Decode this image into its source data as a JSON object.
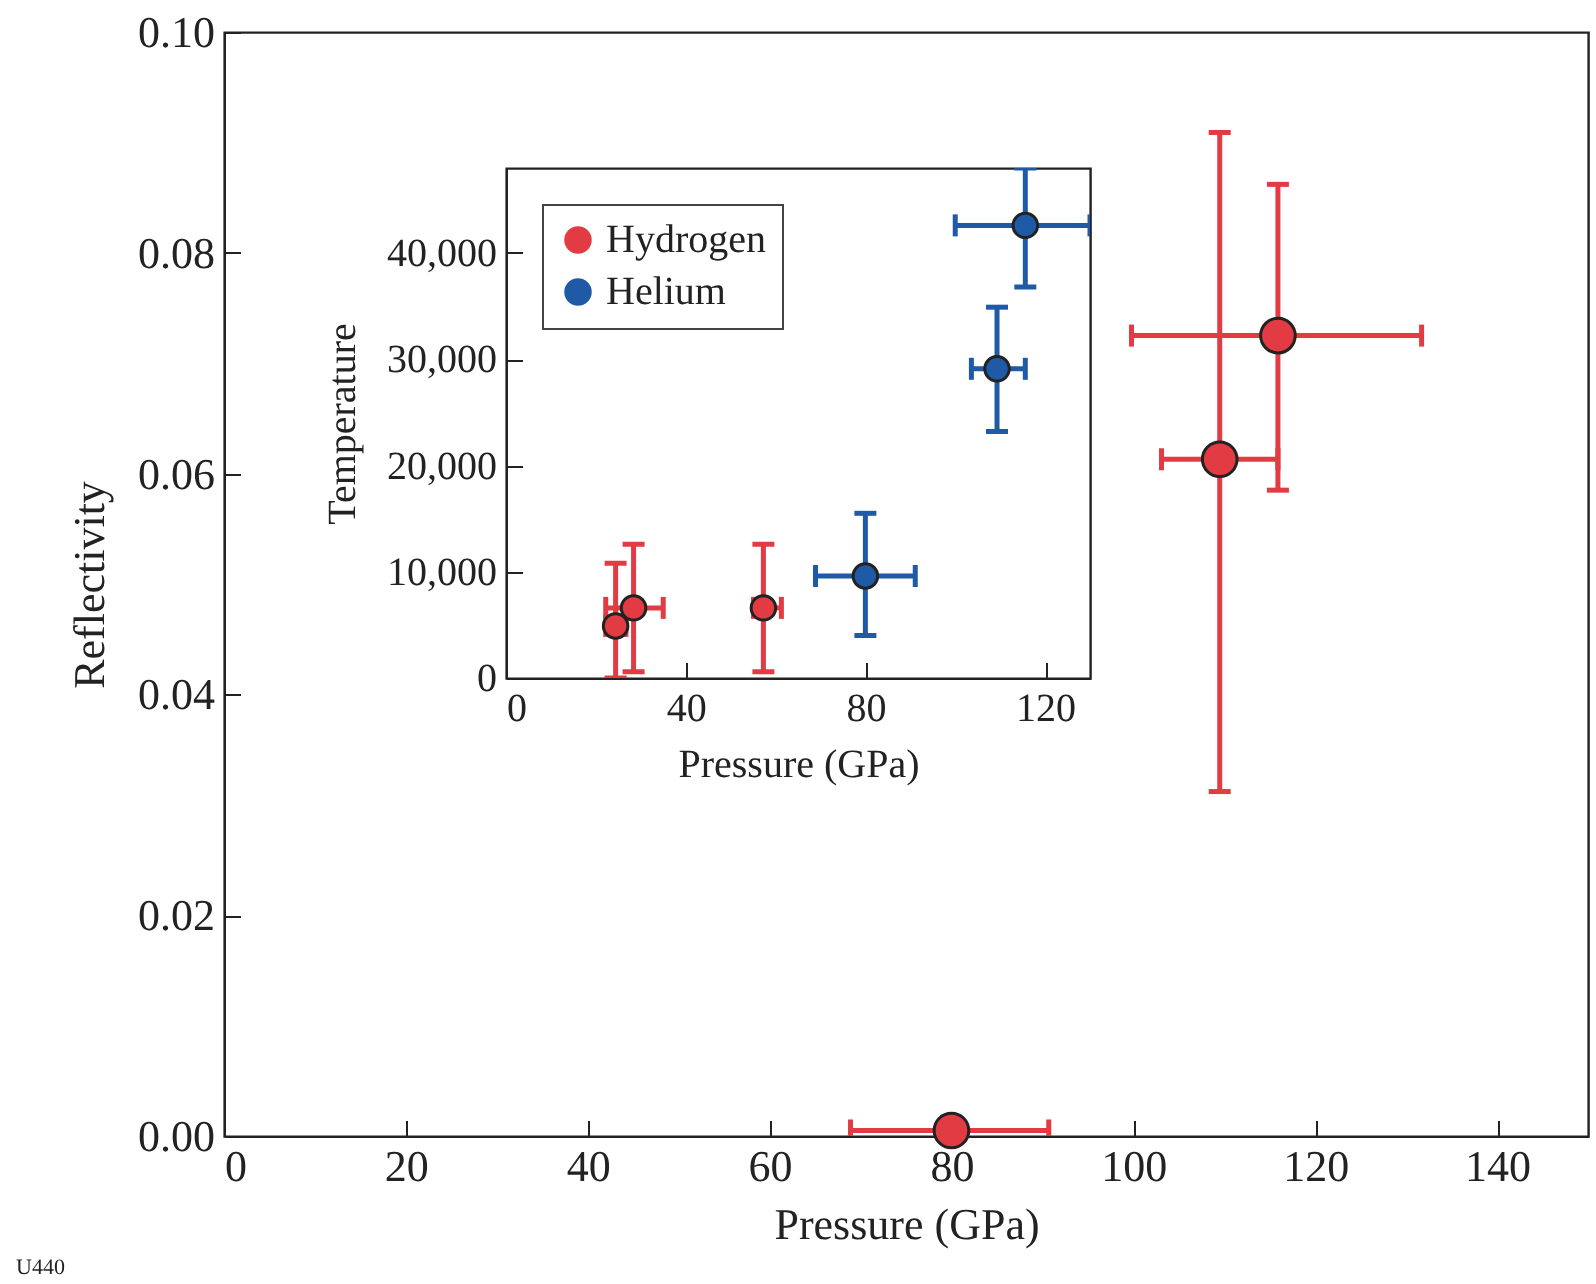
{
  "chart_data": [
    {
      "type": "scatter",
      "xlabel": "Pressure (GPa)",
      "ylabel": "Reflectivity",
      "xlim": [
        0,
        150
      ],
      "ylim": [
        0,
        0.1
      ],
      "xticks": [
        0,
        20,
        40,
        60,
        80,
        100,
        120,
        140
      ],
      "yticks": [
        {
          "value": 0,
          "label": "0.00"
        },
        {
          "value": 0.02,
          "label": "0.02"
        },
        {
          "value": 0.04,
          "label": "0.04"
        },
        {
          "value": 0.06,
          "label": "0.06"
        },
        {
          "value": 0.08,
          "label": "0.08"
        },
        {
          "value": 0.1,
          "label": "0.10"
        }
      ],
      "grid": false,
      "marker": "circle",
      "annotations": [
        "U440"
      ],
      "series": [
        {
          "color": "#e23b44",
          "x": [
            80,
            109.5,
            115.9
          ],
          "values": [
            0.0005,
            0.0613,
            0.0725
          ],
          "errors": [
            null,
            [
              0.0312,
              0.0909
            ],
            [
              0.0585,
              0.0862
            ]
          ],
          "xerrors": [
            [
              68.9,
              90.7
            ],
            [
              103.1,
              115.9
            ],
            [
              99.8,
              131.7
            ]
          ]
        }
      ]
    },
    {
      "type": "scatter",
      "xlabel": "Pressure (GPa)",
      "ylabel": "Temperature",
      "xlim": [
        0,
        130
      ],
      "ylim": [
        0,
        48000
      ],
      "xticks": [
        0,
        40,
        80,
        120
      ],
      "yticks": [
        0,
        {
          "value": 10000,
          "label": "10,000"
        },
        {
          "value": 20000,
          "label": "20,000"
        },
        {
          "value": 30000,
          "label": "30,000"
        },
        {
          "value": 40000,
          "label": "40,000"
        }
      ],
      "grid": false,
      "marker": "circle",
      "legend": "top left",
      "series": [
        {
          "name": "Hydrogen",
          "color": "#e23b44",
          "x": [
            24.4,
            28.4,
            57.3
          ],
          "values": [
            4900,
            6600,
            6600
          ],
          "errors": [
            [
              0,
              10800
            ],
            [
              600,
              12600
            ],
            [
              600,
              12600
            ]
          ],
          "xerrors": [
            [
              22.2,
              26.7
            ],
            [
              22.2,
              35
            ],
            [
              55.1,
              61.3
            ]
          ]
        },
        {
          "name": "Helium",
          "color": "#1f5aa6",
          "x": [
            80,
            109.3,
            115.6
          ],
          "values": [
            9600,
            29100,
            42600
          ],
          "errors": [
            [
              4000,
              15500
            ],
            [
              23200,
              34900
            ],
            [
              36800,
              48000
            ]
          ],
          "xerrors": [
            [
              68.9,
              91.1
            ],
            [
              103.6,
              115.6
            ],
            [
              100,
              130
            ]
          ]
        }
      ]
    }
  ]
}
